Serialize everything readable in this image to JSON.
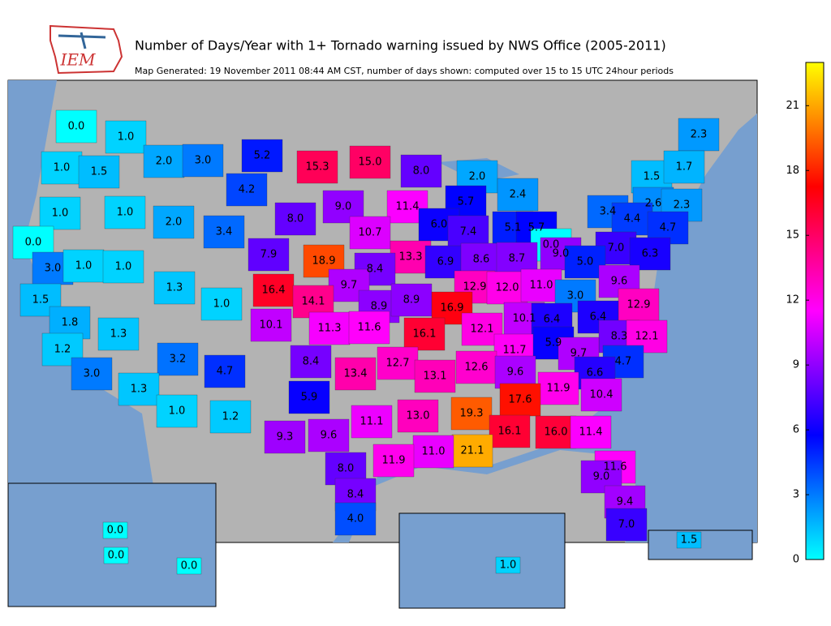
{
  "header": {
    "logo_text": "IEM",
    "title": "Number of Days/Year with 1+ Tornado warning issued by NWS Office (2005-2011)",
    "subtitle": "Map Generated: 19 November 2011 08:44 AM CST, number of days shown: computed over 15 to 15 UTC 24hour periods"
  },
  "colorbar": {
    "lim": [
      0,
      23
    ],
    "ticks": [
      0,
      3,
      6,
      9,
      12,
      15,
      18,
      21
    ],
    "colormap": [
      "#00ffff",
      "#0080ff",
      "#0000ff",
      "#8000ff",
      "#ff00ff",
      "#ff0080",
      "#ff0000",
      "#ff8000",
      "#ffff00"
    ]
  },
  "offices": {
    "values": [
      0,
      1,
      1,
      1.5,
      2,
      3,
      5.2,
      15.3,
      15,
      8,
      2,
      2.4,
      2.3,
      1.5,
      1.7,
      1,
      1,
      4.2,
      9,
      11.4,
      5.7,
      3.4,
      2.6,
      2.3,
      4.4,
      4.7,
      0,
      2,
      3.4,
      8,
      10.7,
      6,
      7.4,
      5.1,
      5.7,
      0,
      9,
      7,
      6.3,
      3,
      1,
      1,
      7.9,
      18.9,
      13.3,
      6.9,
      8.6,
      8.7,
      5,
      8.4,
      1.3,
      16.4,
      9.7,
      12.9,
      12,
      11,
      9.6,
      1.5,
      1,
      14.1,
      8.9,
      8.9,
      16.9,
      3,
      12.9,
      1.8,
      10.1,
      11.3,
      11.6,
      16.1,
      12.1,
      10.1,
      6.4,
      6.4,
      1.3,
      8.3,
      12.1,
      1.2,
      3.2,
      8.4,
      12.7,
      11.7,
      5.9,
      9.7,
      4.7,
      3,
      4.7,
      13.4,
      13.1,
      12.6,
      9.6,
      6.6,
      1.3,
      5.9,
      11.9,
      10.4,
      17.6,
      1,
      1.2,
      11.1,
      13,
      19.3,
      16.1,
      16,
      11.4,
      9.3,
      9.6,
      21.1,
      11,
      11.9,
      8,
      11.6,
      9,
      8.4,
      9.4,
      4,
      7,
      1.5,
      0,
      0,
      0,
      1
    ],
    "value_labels": [
      "0.0",
      "1.0",
      "1.0",
      "1.5",
      "2.0",
      "3.0",
      "5.2",
      "15.3",
      "15.0",
      "8.0",
      "2.0",
      "2.4",
      "2.3",
      "1.5",
      "1.7",
      "1.0",
      "1.0",
      "4.2",
      "9.0",
      "11.4",
      "5.7",
      "3.4",
      "2.6",
      "2.3",
      "4.4",
      "4.7",
      "0.0",
      "2.0",
      "3.4",
      "8.0",
      "10.7",
      "6.0",
      "7.4",
      "5.1",
      "5.7",
      "0.0",
      "9.0",
      "7.0",
      "6.3",
      "3.0",
      "1.0",
      "1.0",
      "7.9",
      "18.9",
      "13.3",
      "6.9",
      "8.6",
      "8.7",
      "5.0",
      "8.4",
      "1.3",
      "16.4",
      "9.7",
      "12.9",
      "12.0",
      "11.0",
      "9.6",
      "1.5",
      "1.0",
      "14.1",
      "8.9",
      "8.9",
      "16.9",
      "3.0",
      "12.9",
      "1.8",
      "10.1",
      "11.3",
      "11.6",
      "16.1",
      "12.1",
      "10.1",
      "6.4",
      "6.4",
      "1.3",
      "8.3",
      "12.1",
      "1.2",
      "3.2",
      "8.4",
      "12.7",
      "11.7",
      "5.9",
      "9.7",
      "4.7",
      "3.0",
      "4.7",
      "13.4",
      "13.1",
      "12.6",
      "9.6",
      "6.6",
      "1.3",
      "5.9",
      "11.9",
      "10.4",
      "17.6",
      "1.0",
      "1.2",
      "11.1",
      "13.0",
      "19.3",
      "16.1",
      "16.0",
      "11.4",
      "9.3",
      "9.6",
      "21.1",
      "11.0",
      "11.9",
      "8.0",
      "11.6",
      "9.0",
      "8.4",
      "9.4",
      "4.0",
      "7.0",
      "1.5",
      "0.0",
      "0.0",
      "0.0",
      "1.0"
    ]
  }
}
